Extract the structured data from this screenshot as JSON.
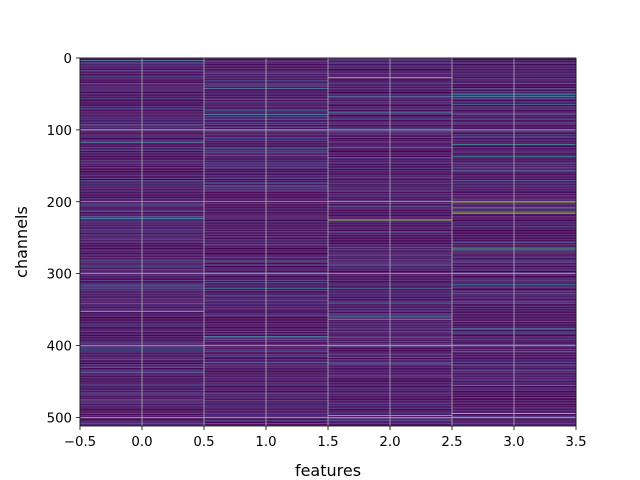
{
  "chart_data": {
    "type": "heatmap",
    "xlabel": "features",
    "ylabel": "channels",
    "xlim": [
      -0.5,
      3.5
    ],
    "ylim": [
      512,
      0
    ],
    "y_inverted": true,
    "grid": true,
    "colormap": "viridis",
    "x_ticks": [
      -0.5,
      0.0,
      0.5,
      1.0,
      1.5,
      2.0,
      2.5,
      3.0,
      3.5
    ],
    "x_tick_labels": [
      "−0.5",
      "0.0",
      "0.5",
      "1.0",
      "1.5",
      "2.0",
      "2.5",
      "3.0",
      "3.5"
    ],
    "y_ticks": [
      0,
      100,
      200,
      300,
      400,
      500
    ],
    "y_tick_labels": [
      "0",
      "100",
      "200",
      "300",
      "400",
      "500"
    ],
    "n_features": 4,
    "n_channels": 512,
    "features": [
      0,
      1,
      2,
      3
    ],
    "highlighted_cells": [
      {
        "feature": 0,
        "channel": 282,
        "value": 0.45
      },
      {
        "feature": 0,
        "channel": 407,
        "value": 0.4
      },
      {
        "feature": 0,
        "channel": 352,
        "value": 0.75
      },
      {
        "feature": 0,
        "channel": 475,
        "value": 0.42
      },
      {
        "feature": 0,
        "channel": 222,
        "value": 0.3
      },
      {
        "feature": 1,
        "channel": 125,
        "value": 0.45
      },
      {
        "feature": 1,
        "channel": 130,
        "value": 0.35
      },
      {
        "feature": 1,
        "channel": 282,
        "value": 0.45
      },
      {
        "feature": 1,
        "channel": 320,
        "value": 0.4
      },
      {
        "feature": 1,
        "channel": 57,
        "value": 0.35
      },
      {
        "feature": 2,
        "channel": 27,
        "value": 0.95
      },
      {
        "feature": 2,
        "channel": 225,
        "value": 0.85
      },
      {
        "feature": 2,
        "channel": 363,
        "value": 0.6
      },
      {
        "feature": 2,
        "channel": 360,
        "value": 0.5
      },
      {
        "feature": 2,
        "channel": 400,
        "value": 0.5
      },
      {
        "feature": 2,
        "channel": 497,
        "value": 0.75
      },
      {
        "feature": 2,
        "channel": 75,
        "value": 0.35
      },
      {
        "feature": 3,
        "channel": 50,
        "value": 0.5
      },
      {
        "feature": 3,
        "channel": 120,
        "value": 0.45
      },
      {
        "feature": 3,
        "channel": 137,
        "value": 0.55
      },
      {
        "feature": 3,
        "channel": 200,
        "value": 0.9
      },
      {
        "feature": 3,
        "channel": 208,
        "value": 0.8
      },
      {
        "feature": 3,
        "channel": 215,
        "value": 0.85
      },
      {
        "feature": 3,
        "channel": 265,
        "value": 0.7
      },
      {
        "feature": 3,
        "channel": 315,
        "value": 0.45
      },
      {
        "feature": 3,
        "channel": 455,
        "value": 0.4
      },
      {
        "feature": 3,
        "channel": 494,
        "value": 0.9
      }
    ],
    "background_value_range": [
      0.0,
      0.22
    ],
    "colors": {
      "low": "#440154",
      "mid": "#21918c",
      "high": "#fde725"
    }
  }
}
